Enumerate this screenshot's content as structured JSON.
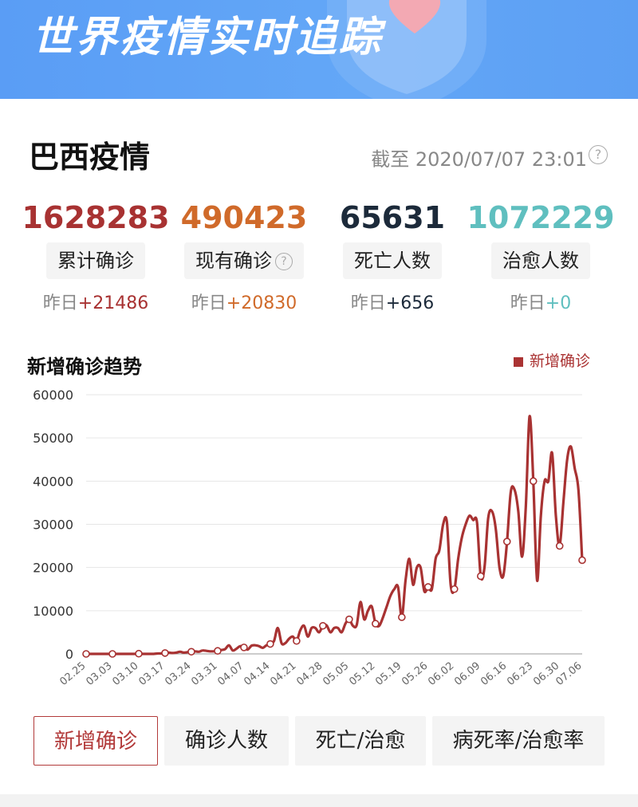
{
  "banner": {
    "title": "世界疫情实时追踪"
  },
  "card": {
    "title": "巴西疫情",
    "update_time": "截至 2020/07/07 23:01"
  },
  "stats": [
    {
      "value": "1628283",
      "label": "累计确诊",
      "delta_prefix": "昨日",
      "delta": "+21486",
      "color": "#a83232"
    },
    {
      "value": "490423",
      "label": "现有确诊",
      "delta_prefix": "昨日",
      "delta": "+20830",
      "color": "#d06a2a",
      "has_help": true
    },
    {
      "value": "65631",
      "label": "死亡人数",
      "delta_prefix": "昨日",
      "delta": "+656",
      "color": "#1c2a3a"
    },
    {
      "value": "1072229",
      "label": "治愈人数",
      "delta_prefix": "昨日",
      "delta": "+0",
      "color": "#5fbfbf"
    }
  ],
  "trend": {
    "title": "新增确诊趋势",
    "legend": "新增确诊"
  },
  "chart_data": {
    "type": "line",
    "series_name": "新增确诊",
    "line_color": "#a83232",
    "ylim": [
      0,
      60000
    ],
    "yticks": [
      0,
      10000,
      20000,
      30000,
      40000,
      50000,
      60000
    ],
    "x_tick_labels": [
      "02.25",
      "03.03",
      "03.10",
      "03.17",
      "03.24",
      "03.31",
      "04.07",
      "04.14",
      "04.21",
      "04.28",
      "05.05",
      "05.12",
      "05.19",
      "05.26",
      "06.02",
      "06.09",
      "06.16",
      "06.23",
      "06.30",
      "07.06"
    ],
    "x_tick_index": [
      0,
      7,
      14,
      21,
      28,
      35,
      42,
      49,
      56,
      63,
      70,
      77,
      84,
      91,
      98,
      105,
      112,
      119,
      126,
      132
    ],
    "values": [
      0,
      0,
      0,
      0,
      0,
      0,
      0,
      0,
      0,
      0,
      0,
      0,
      0,
      0,
      50,
      0,
      0,
      0,
      0,
      100,
      100,
      200,
      300,
      200,
      300,
      500,
      300,
      400,
      500,
      600,
      500,
      800,
      700,
      600,
      600,
      700,
      900,
      1100,
      2000,
      800,
      1200,
      1800,
      1500,
      1000,
      1900,
      2000,
      1800,
      1400,
      2000,
      2300,
      3000,
      6000,
      2500,
      2500,
      3500,
      4000,
      3000,
      5500,
      6500,
      4000,
      6000,
      6000,
      5000,
      6500,
      6600,
      5000,
      6000,
      6000,
      5000,
      7000,
      8000,
      6500,
      6700,
      12000,
      8000,
      10000,
      11000,
      7000,
      6500,
      8500,
      11000,
      13500,
      15000,
      15500,
      8500,
      17000,
      22000,
      16000,
      20000,
      20000,
      14500,
      15500,
      15000,
      22000,
      24000,
      30000,
      30500,
      16000,
      15000,
      22000,
      27000,
      30000,
      32000,
      31000,
      30500,
      18000,
      20000,
      31500,
      33000,
      29000,
      20000,
      18000,
      26000,
      37500,
      38000,
      33000,
      22500,
      34000,
      55000,
      40000,
      17000,
      32000,
      40000,
      40000,
      46500,
      32000,
      25000,
      35000,
      45000,
      48000,
      43000,
      38000,
      21700
    ],
    "markers": [
      0,
      7,
      14,
      21,
      28,
      35,
      42,
      49,
      56,
      63,
      70,
      77,
      84,
      91,
      98,
      105,
      112,
      119,
      126,
      132
    ]
  },
  "tabs": [
    {
      "label": "新增确诊",
      "active": true
    },
    {
      "label": "确诊人数",
      "active": false
    },
    {
      "label": "死亡/治愈",
      "active": false
    },
    {
      "label": "病死率/治愈率",
      "active": false
    }
  ]
}
